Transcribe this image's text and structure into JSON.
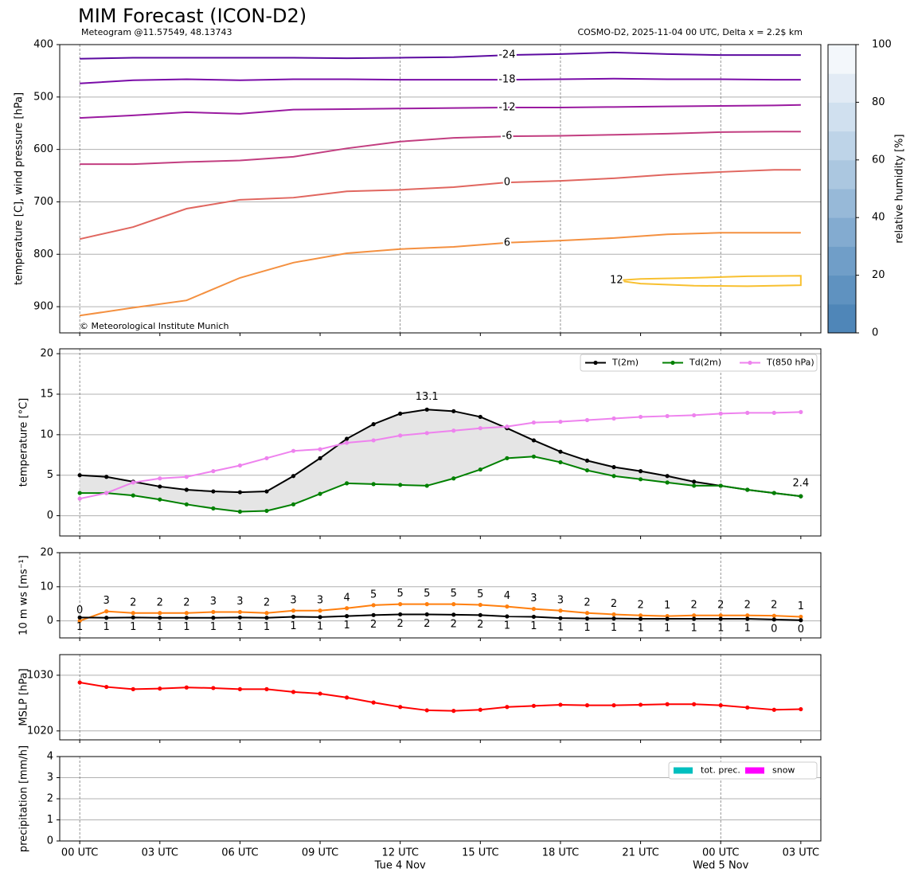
{
  "title": "MIM Forecast (ICON-D2)",
  "subtitle": "Meteogram @11.57549, 48.13743",
  "info": "COSMO-D2, 2025-11-04 00 UTC, Delta x = 2.2$ km",
  "chart_data": [
    {
      "type": "contour",
      "ylabel": "temperature [C], wind pressure [hPa]",
      "copyright": "© Meteorological Institute Munich",
      "xlim": [
        -0.75,
        27.75
      ],
      "xticks": [
        0,
        3,
        6,
        9,
        12,
        15,
        18,
        21,
        24,
        27
      ],
      "vlines": [
        0,
        12,
        18,
        24
      ],
      "ylim": [
        950,
        400
      ],
      "yticks": [
        400,
        500,
        600,
        700,
        800,
        900
      ],
      "grid": true,
      "series": [
        {
          "name": "-24",
          "color": "#5c0aa0",
          "x": [
            0,
            2,
            4,
            6,
            8,
            10,
            12,
            14,
            16,
            18,
            20,
            22,
            24,
            26,
            27
          ],
          "values": [
            427,
            425,
            425,
            425,
            425,
            426,
            425,
            424,
            420,
            418,
            415,
            418,
            420,
            420,
            420
          ]
        },
        {
          "name": "-18",
          "color": "#7a0ca8",
          "x": [
            0,
            2,
            4,
            6,
            8,
            10,
            12,
            14,
            16,
            18,
            20,
            22,
            24,
            26,
            27
          ],
          "values": [
            474,
            468,
            466,
            468,
            466,
            466,
            467,
            467,
            467,
            466,
            465,
            466,
            466,
            467,
            467
          ]
        },
        {
          "name": "-12",
          "color": "#9a1aa0",
          "x": [
            0,
            2,
            4,
            6,
            8,
            10,
            12,
            14,
            16,
            18,
            20,
            22,
            24,
            26,
            27
          ],
          "values": [
            540,
            535,
            529,
            532,
            524,
            523,
            522,
            521,
            520,
            520,
            519,
            518,
            517,
            516,
            515
          ]
        },
        {
          "name": "-6",
          "color": "#c23e80",
          "x": [
            0,
            2,
            4,
            6,
            8,
            10,
            12,
            14,
            16,
            18,
            20,
            22,
            24,
            26,
            27
          ],
          "values": [
            628,
            628,
            624,
            621,
            614,
            598,
            585,
            578,
            575,
            574,
            572,
            570,
            567,
            566,
            566
          ]
        },
        {
          "name": "0",
          "color": "#e0665f",
          "x": [
            0,
            2,
            4,
            6,
            8,
            10,
            12,
            14,
            16,
            18,
            20,
            22,
            24,
            26,
            27
          ],
          "values": [
            771,
            748,
            713,
            696,
            692,
            680,
            677,
            672,
            663,
            660,
            655,
            648,
            643,
            639,
            639
          ]
        },
        {
          "name": "6",
          "color": "#f49040",
          "x": [
            0,
            2,
            4,
            6,
            8,
            10,
            12,
            14,
            16,
            18,
            20,
            22,
            24,
            26,
            27
          ],
          "values": [
            917,
            902,
            888,
            845,
            816,
            798,
            790,
            786,
            778,
            774,
            769,
            762,
            759,
            759,
            759
          ]
        },
        {
          "name": "12",
          "color": "#f8c030",
          "x": [
            20.1,
            21,
            23,
            25,
            27,
            27,
            25,
            23,
            21,
            20.1
          ],
          "values": [
            850,
            847,
            845,
            842,
            841,
            859,
            861,
            860,
            856,
            850
          ]
        }
      ],
      "colorbar": {
        "label": "relative humidity [%]",
        "lim": [
          0,
          100
        ],
        "ticks": [
          0,
          20,
          40,
          60,
          80,
          100
        ],
        "colors": [
          "#4f86b8",
          "#5f92c0",
          "#709ec8",
          "#83abd0",
          "#97b9d8",
          "#abc7e0",
          "#bed4e8",
          "#d0e0ef",
          "#e2ebf5",
          "#f3f7fb"
        ]
      }
    },
    {
      "type": "line",
      "ylabel": "temperature [°C]",
      "markers": true,
      "fill_between": true,
      "fill_color": "#e5e5e5",
      "x": [
        0,
        1,
        2,
        3,
        4,
        5,
        6,
        7,
        8,
        9,
        10,
        11,
        12,
        13,
        14,
        15,
        16,
        17,
        18,
        19,
        20,
        21,
        22,
        23,
        24,
        25,
        26,
        27
      ],
      "xlim": [
        -0.75,
        27.75
      ],
      "xticks": [
        0,
        3,
        6,
        9,
        12,
        15,
        18,
        21,
        24,
        27
      ],
      "vlines": [
        0,
        24
      ],
      "ylim": [
        -2.5,
        20.6
      ],
      "yticks": [
        0,
        5,
        10,
        15,
        20
      ],
      "grid": true,
      "legend": "upper right",
      "series": [
        {
          "name": "T(2m)",
          "color": "#000000",
          "values": [
            5.0,
            4.8,
            4.2,
            3.6,
            3.2,
            3.0,
            2.9,
            3.0,
            4.9,
            7.1,
            9.5,
            11.3,
            12.6,
            13.1,
            12.9,
            12.2,
            10.8,
            9.3,
            7.9,
            6.8,
            6.0,
            5.5,
            4.9,
            4.2,
            3.7,
            3.2,
            2.8,
            2.4
          ]
        },
        {
          "name": "Td(2m)",
          "color": "#008000",
          "values": [
            2.8,
            2.8,
            2.5,
            2.0,
            1.4,
            0.9,
            0.5,
            0.6,
            1.4,
            2.7,
            4.0,
            3.9,
            3.8,
            3.7,
            4.6,
            5.7,
            7.1,
            7.3,
            6.6,
            5.6,
            4.9,
            4.5,
            4.1,
            3.7,
            3.7,
            3.2,
            2.8,
            2.4
          ]
        },
        {
          "name": "T(850 hPa)",
          "color": "#ee82ee",
          "values": [
            2.1,
            2.8,
            4.1,
            4.6,
            4.8,
            5.5,
            6.2,
            7.1,
            8.0,
            8.2,
            9.0,
            9.3,
            9.9,
            10.2,
            10.5,
            10.8,
            11.0,
            11.5,
            11.6,
            11.8,
            12.0,
            12.2,
            12.3,
            12.4,
            12.6,
            12.7,
            12.7,
            12.8
          ]
        }
      ],
      "annotations": [
        {
          "label": "13.1",
          "x": 13,
          "y": 13.1,
          "color": "#ff0000"
        },
        {
          "label": "2.4",
          "x": 27,
          "y": 2.4,
          "color": "#0000ff"
        }
      ]
    },
    {
      "type": "line",
      "ylabel": "10 m ws [ms⁻¹]",
      "markers": true,
      "x": [
        0,
        1,
        2,
        3,
        4,
        5,
        6,
        7,
        8,
        9,
        10,
        11,
        12,
        13,
        14,
        15,
        16,
        17,
        18,
        19,
        20,
        21,
        22,
        23,
        24,
        25,
        26,
        27
      ],
      "xlim": [
        -0.75,
        27.75
      ],
      "xticks": [
        0,
        3,
        6,
        9,
        12,
        15,
        18,
        21,
        24,
        27
      ],
      "vlines": [
        0,
        24
      ],
      "ylim": [
        -5,
        20
      ],
      "yticks": [
        0,
        10,
        20
      ],
      "grid": true,
      "series": [
        {
          "color": "#ff7f0e",
          "label_pos": "above",
          "values": [
            0.0,
            2.8,
            2.3,
            2.3,
            2.3,
            2.6,
            2.6,
            2.3,
            3.0,
            3.0,
            3.7,
            4.6,
            4.9,
            4.9,
            4.9,
            4.7,
            4.2,
            3.5,
            3.0,
            2.3,
            1.9,
            1.6,
            1.4,
            1.6,
            1.6,
            1.6,
            1.5,
            1.2
          ],
          "value_labels": [
            "0",
            "3",
            "2",
            "2",
            "2",
            "3",
            "3",
            "2",
            "3",
            "3",
            "4",
            "5",
            "5",
            "5",
            "5",
            "5",
            "4",
            "3",
            "3",
            "2",
            "2",
            "2",
            "1",
            "2",
            "2",
            "2",
            "2",
            "1"
          ]
        },
        {
          "color": "#000000",
          "label_pos": "below",
          "values": [
            1.0,
            0.9,
            1.0,
            0.9,
            0.9,
            0.9,
            1.0,
            0.9,
            1.2,
            1.1,
            1.4,
            1.7,
            1.9,
            1.9,
            1.8,
            1.7,
            1.3,
            1.2,
            0.8,
            0.7,
            0.7,
            0.6,
            0.6,
            0.6,
            0.6,
            0.6,
            0.4,
            0.2
          ],
          "value_labels": [
            "1",
            "1",
            "1",
            "1",
            "1",
            "1",
            "1",
            "1",
            "1",
            "1",
            "1",
            "2",
            "2",
            "2",
            "2",
            "2",
            "1",
            "1",
            "1",
            "1",
            "1",
            "1",
            "1",
            "1",
            "1",
            "1",
            "0",
            "0"
          ]
        }
      ]
    },
    {
      "type": "line",
      "ylabel": "MSLP [hPa]",
      "markers": true,
      "x": [
        0,
        1,
        2,
        3,
        4,
        5,
        6,
        7,
        8,
        9,
        10,
        11,
        12,
        13,
        14,
        15,
        16,
        17,
        18,
        19,
        20,
        21,
        22,
        23,
        24,
        25,
        26,
        27
      ],
      "xlim": [
        -0.75,
        27.75
      ],
      "xticks": [
        0,
        3,
        6,
        9,
        12,
        15,
        18,
        21,
        24,
        27
      ],
      "vlines": [
        0,
        24
      ],
      "ylim": [
        1018.4,
        1033.7
      ],
      "yticks": [
        1020,
        1030
      ],
      "grid": true,
      "series": [
        {
          "color": "#ff0000",
          "values": [
            1028.7,
            1027.9,
            1027.5,
            1027.6,
            1027.8,
            1027.7,
            1027.5,
            1027.5,
            1027.0,
            1026.7,
            1026.0,
            1025.1,
            1024.3,
            1023.7,
            1023.6,
            1023.8,
            1024.3,
            1024.5,
            1024.7,
            1024.6,
            1024.6,
            1024.7,
            1024.8,
            1024.8,
            1024.6,
            1024.2,
            1023.8,
            1023.9
          ]
        }
      ]
    },
    {
      "type": "bar",
      "ylabel": "precipitation [mm/h]",
      "x": [
        0,
        1,
        2,
        3,
        4,
        5,
        6,
        7,
        8,
        9,
        10,
        11,
        12,
        13,
        14,
        15,
        16,
        17,
        18,
        19,
        20,
        21,
        22,
        23,
        24,
        25,
        26,
        27
      ],
      "xlim": [
        -0.75,
        27.75
      ],
      "xticks": [
        {
          "value": 0,
          "label": "00 UTC"
        },
        {
          "value": 3,
          "label": "03 UTC"
        },
        {
          "value": 6,
          "label": "06 UTC"
        },
        {
          "value": 9,
          "label": "09 UTC"
        },
        {
          "value": 12,
          "label": "12 UTC"
        },
        {
          "value": 15,
          "label": "15 UTC"
        },
        {
          "value": 18,
          "label": "18 UTC"
        },
        {
          "value": 21,
          "label": "21 UTC"
        },
        {
          "value": 24,
          "label": "00 UTC"
        },
        {
          "value": 27,
          "label": "03 UTC"
        }
      ],
      "date_labels": [
        {
          "value": 12,
          "label": "Tue 4 Nov"
        },
        {
          "value": 24,
          "label": "Wed 5 Nov"
        }
      ],
      "vlines": [
        0,
        24
      ],
      "ylim": [
        0,
        4
      ],
      "yticks": [
        0,
        1,
        2,
        3,
        4
      ],
      "grid": true,
      "legend": "upper right",
      "series": [
        {
          "name": "tot. prec.",
          "color": "#00bfbf",
          "values": [
            0,
            0,
            0,
            0,
            0,
            0,
            0,
            0,
            0,
            0,
            0,
            0,
            0,
            0,
            0,
            0,
            0,
            0,
            0,
            0,
            0,
            0,
            0,
            0,
            0,
            0,
            0,
            0
          ]
        },
        {
          "name": "snow",
          "color": "#ff00ff",
          "values": [
            0,
            0,
            0,
            0,
            0,
            0,
            0,
            0,
            0,
            0,
            0,
            0,
            0,
            0,
            0,
            0,
            0,
            0,
            0,
            0,
            0,
            0,
            0,
            0,
            0,
            0,
            0,
            0
          ]
        }
      ]
    }
  ]
}
